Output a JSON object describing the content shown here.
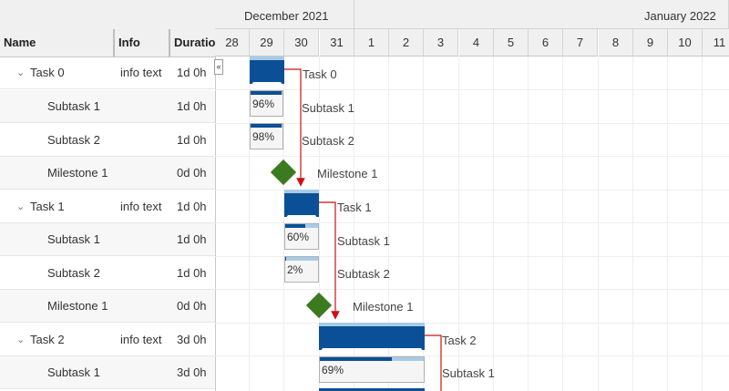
{
  "columns": {
    "name": "Name",
    "info": "Info",
    "duration": "Duratio"
  },
  "collapse_button": "«",
  "timeline": {
    "months": [
      {
        "label": "December 2021"
      },
      {
        "label": "January 2022"
      }
    ],
    "days": [
      "28",
      "29",
      "30",
      "31",
      "1",
      "2",
      "3",
      "4",
      "5",
      "6",
      "7",
      "8",
      "9",
      "10",
      "11"
    ]
  },
  "rows": [
    {
      "name": "Task 0",
      "info": "info text",
      "duration": "1d 0h"
    },
    {
      "name": "Subtask 1",
      "info": "",
      "duration": "1d 0h"
    },
    {
      "name": "Subtask 2",
      "info": "",
      "duration": "1d 0h"
    },
    {
      "name": "Milestone 1",
      "info": "",
      "duration": "0d 0h"
    },
    {
      "name": "Task 1",
      "info": "info text",
      "duration": "1d 0h"
    },
    {
      "name": "Subtask 1",
      "info": "",
      "duration": "1d 0h"
    },
    {
      "name": "Subtask 2",
      "info": "",
      "duration": "1d 0h"
    },
    {
      "name": "Milestone 1",
      "info": "",
      "duration": "0d 0h"
    },
    {
      "name": "Task 2",
      "info": "info text",
      "duration": "3d 0h"
    },
    {
      "name": "Subtask 1",
      "info": "",
      "duration": "3d 0h"
    }
  ],
  "bars": {
    "task0": {
      "label": "Task 0"
    },
    "t0s1": {
      "label": "Subtask 1",
      "progress": "96%"
    },
    "t0s2": {
      "label": "Subtask 2",
      "progress": "98%"
    },
    "t0m": {
      "label": "Milestone 1"
    },
    "task1": {
      "label": "Task 1"
    },
    "t1s1": {
      "label": "Subtask 1",
      "progress": "60%"
    },
    "t1s2": {
      "label": "Subtask 2",
      "progress": "2%"
    },
    "t1m": {
      "label": "Milestone 1"
    },
    "task2": {
      "label": "Task 2"
    },
    "t2s1": {
      "label": "Subtask 1",
      "progress": "69%"
    }
  },
  "colors": {
    "summary_bar": "#0b5096",
    "milestone": "#3c7a1f",
    "dependency": "#cc1111"
  }
}
